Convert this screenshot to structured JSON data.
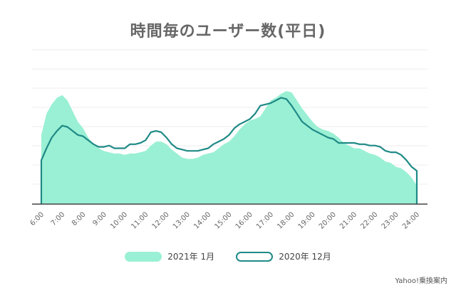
{
  "chart_title": "時間毎のユーザー数(平日)",
  "credit": "Yahoo!乗換案内",
  "colors": {
    "fill": "#9af0d4",
    "line": "#1f8a86",
    "grid": "#eeeeee",
    "axis": "#444444"
  },
  "chart_data": {
    "type": "area",
    "title": "時間毎のユーザー数(平日)",
    "x_tick_labels": [
      "6:00",
      "7:00",
      "8:00",
      "9:00",
      "10:00",
      "11:00",
      "12:00",
      "13:00",
      "14:00",
      "15:00",
      "16:00",
      "17:00",
      "18:00",
      "19:00",
      "20:00",
      "21:00",
      "22:00",
      "23:00",
      "24:00"
    ],
    "x_range": [
      6,
      24
    ],
    "y_range": [
      0,
      100
    ],
    "grid": true,
    "legend_position": "bottom",
    "series": [
      {
        "name": "2021年 1月",
        "style": "filled-area",
        "x": [
          6,
          6.25,
          6.5,
          6.75,
          7,
          7.25,
          7.5,
          7.75,
          8,
          8.25,
          8.5,
          8.75,
          9,
          9.25,
          9.5,
          9.75,
          10,
          10.25,
          10.5,
          10.75,
          11,
          11.25,
          11.5,
          11.75,
          12,
          12.25,
          12.5,
          12.75,
          13,
          13.25,
          13.5,
          13.75,
          14,
          14.25,
          14.5,
          14.75,
          15,
          15.25,
          15.5,
          15.75,
          16,
          16.25,
          16.5,
          16.75,
          17,
          17.25,
          17.5,
          17.75,
          18,
          18.25,
          18.5,
          18.75,
          19,
          19.25,
          19.5,
          19.75,
          20,
          20.25,
          20.5,
          20.75,
          21,
          21.25,
          21.5,
          21.75,
          22,
          22.25,
          22.5,
          22.75,
          23,
          23.25,
          23.5,
          23.75,
          24
        ],
        "values": [
          52,
          68,
          75,
          80,
          82,
          78,
          70,
          62,
          57,
          50,
          45,
          42,
          40,
          39,
          38,
          38,
          37,
          38,
          38,
          39,
          40,
          44,
          47,
          47,
          45,
          41,
          38,
          35,
          34,
          34,
          35,
          37,
          38,
          39,
          42,
          45,
          47,
          51,
          56,
          60,
          63,
          64,
          66,
          72,
          78,
          80,
          83,
          85,
          84,
          78,
          72,
          67,
          62,
          58,
          56,
          55,
          53,
          50,
          46,
          44,
          42,
          42,
          40,
          38,
          37,
          35,
          32,
          31,
          28,
          27,
          24,
          20,
          14
        ]
      },
      {
        "name": "2020年 12月",
        "style": "line",
        "x": [
          6,
          6.25,
          6.5,
          6.75,
          7,
          7.25,
          7.5,
          7.75,
          8,
          8.25,
          8.5,
          8.75,
          9,
          9.25,
          9.5,
          9.75,
          10,
          10.25,
          10.5,
          10.75,
          11,
          11.25,
          11.5,
          11.75,
          12,
          12.25,
          12.5,
          12.75,
          13,
          13.25,
          13.5,
          13.75,
          14,
          14.25,
          14.5,
          14.75,
          15,
          15.25,
          15.5,
          15.75,
          16,
          16.25,
          16.5,
          16.75,
          17,
          17.25,
          17.5,
          17.75,
          18,
          18.25,
          18.5,
          18.75,
          19,
          19.25,
          19.5,
          19.75,
          20,
          20.25,
          20.5,
          20.75,
          21,
          21.25,
          21.5,
          21.75,
          22,
          22.25,
          22.5,
          22.75,
          23,
          23.25,
          23.5,
          23.75,
          24
        ],
        "values": [
          33,
          42,
          50,
          55,
          59,
          58,
          55,
          52,
          51,
          48,
          45,
          43,
          43,
          44,
          42,
          42,
          42,
          45,
          45,
          46,
          48,
          54,
          55,
          54,
          50,
          45,
          42,
          41,
          40,
          40,
          40,
          41,
          42,
          45,
          47,
          49,
          52,
          57,
          60,
          62,
          64,
          68,
          74,
          75,
          76,
          78,
          80,
          79,
          74,
          68,
          62,
          59,
          56,
          54,
          52,
          50,
          49,
          46,
          46,
          46,
          46,
          45,
          45,
          44,
          44,
          43,
          40,
          39,
          39,
          37,
          33,
          28,
          25
        ]
      }
    ]
  }
}
